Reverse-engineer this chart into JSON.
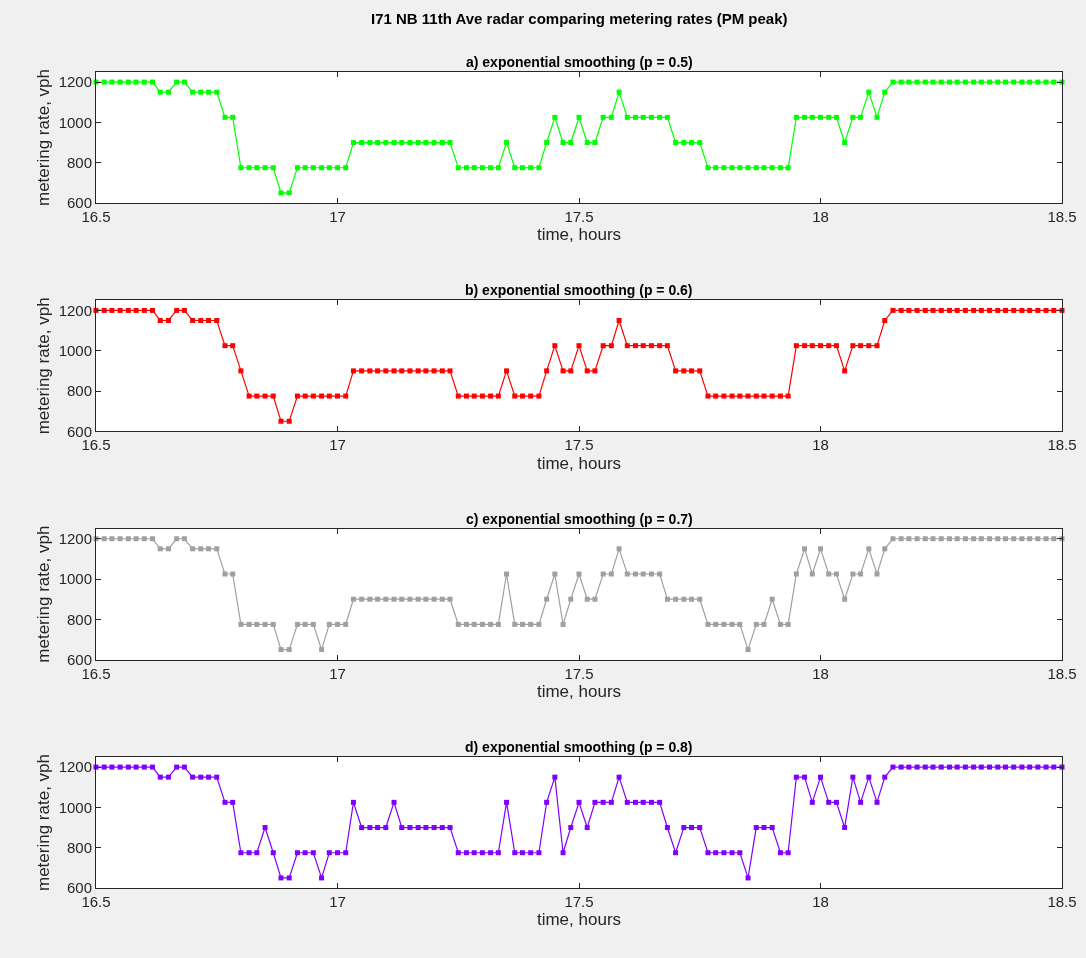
{
  "chart_data": [
    {
      "type": "line",
      "title": "I71 NB 11th Ave radar comparing metering rates (PM peak)",
      "subtitle": "a) exponential smoothing (p = 0.5)",
      "xlabel": "time, hours",
      "ylabel": "metering rate, vph",
      "color": "#00ff00",
      "marker": "square",
      "xlim": [
        16.5,
        18.5
      ],
      "ylim": [
        600,
        1250
      ],
      "xticks": [
        16.5,
        17,
        17.5,
        18,
        18.5
      ],
      "yticks": [
        600,
        800,
        1000,
        1200
      ],
      "x": [
        16.5,
        16.517,
        16.533,
        16.55,
        16.567,
        16.583,
        16.6,
        16.617,
        16.633,
        16.65,
        16.667,
        16.683,
        16.7,
        16.717,
        16.733,
        16.75,
        16.767,
        16.783,
        16.8,
        16.817,
        16.833,
        16.85,
        16.867,
        16.883,
        16.9,
        16.917,
        16.933,
        16.95,
        16.967,
        16.983,
        17.0,
        17.017,
        17.033,
        17.05,
        17.067,
        17.083,
        17.1,
        17.117,
        17.133,
        17.15,
        17.167,
        17.183,
        17.2,
        17.217,
        17.233,
        17.25,
        17.267,
        17.283,
        17.3,
        17.317,
        17.333,
        17.35,
        17.367,
        17.383,
        17.4,
        17.417,
        17.433,
        17.45,
        17.467,
        17.483,
        17.5,
        17.517,
        17.533,
        17.55,
        17.567,
        17.583,
        17.6,
        17.617,
        17.633,
        17.65,
        17.667,
        17.683,
        17.7,
        17.717,
        17.733,
        17.75,
        17.767,
        17.783,
        17.8,
        17.817,
        17.833,
        17.85,
        17.867,
        17.883,
        17.9,
        17.917,
        17.933,
        17.95,
        17.967,
        17.983,
        18.0,
        18.017,
        18.033,
        18.05,
        18.067,
        18.083,
        18.1,
        18.117,
        18.133,
        18.15,
        18.167,
        18.183,
        18.2,
        18.217,
        18.233,
        18.25,
        18.267,
        18.283,
        18.3,
        18.317,
        18.333,
        18.35,
        18.367,
        18.383,
        18.4,
        18.417,
        18.433,
        18.45,
        18.467,
        18.483,
        18.5
      ],
      "values": [
        1200,
        1200,
        1200,
        1200,
        1200,
        1200,
        1200,
        1200,
        1150,
        1150,
        1200,
        1200,
        1150,
        1150,
        1150,
        1150,
        1025,
        1025,
        775,
        775,
        775,
        775,
        775,
        650,
        650,
        775,
        775,
        775,
        775,
        775,
        775,
        775,
        900,
        900,
        900,
        900,
        900,
        900,
        900,
        900,
        900,
        900,
        900,
        900,
        900,
        775,
        775,
        775,
        775,
        775,
        775,
        900,
        775,
        775,
        775,
        775,
        900,
        1025,
        900,
        900,
        1025,
        900,
        900,
        1025,
        1025,
        1150,
        1025,
        1025,
        1025,
        1025,
        1025,
        1025,
        900,
        900,
        900,
        900,
        775,
        775,
        775,
        775,
        775,
        775,
        775,
        775,
        775,
        775,
        775,
        1025,
        1025,
        1025,
        1025,
        1025,
        1025,
        900,
        1025,
        1025,
        1150,
        1025,
        1150,
        1200,
        1200,
        1200,
        1200,
        1200,
        1200,
        1200,
        1200,
        1200,
        1200,
        1200,
        1200,
        1200,
        1200,
        1200,
        1200,
        1200,
        1200,
        1200,
        1200,
        1200,
        1200
      ]
    },
    {
      "type": "line",
      "subtitle": "b) exponential smoothing (p = 0.6)",
      "xlabel": "time, hours",
      "ylabel": "metering rate, vph",
      "color": "#ff0000",
      "marker": "square",
      "xlim": [
        16.5,
        18.5
      ],
      "ylim": [
        600,
        1250
      ],
      "xticks": [
        16.5,
        17,
        17.5,
        18,
        18.5
      ],
      "yticks": [
        600,
        800,
        1000,
        1200
      ],
      "x": [
        16.5,
        16.517,
        16.533,
        16.55,
        16.567,
        16.583,
        16.6,
        16.617,
        16.633,
        16.65,
        16.667,
        16.683,
        16.7,
        16.717,
        16.733,
        16.75,
        16.767,
        16.783,
        16.8,
        16.817,
        16.833,
        16.85,
        16.867,
        16.883,
        16.9,
        16.917,
        16.933,
        16.95,
        16.967,
        16.983,
        17.0,
        17.017,
        17.033,
        17.05,
        17.067,
        17.083,
        17.1,
        17.117,
        17.133,
        17.15,
        17.167,
        17.183,
        17.2,
        17.217,
        17.233,
        17.25,
        17.267,
        17.283,
        17.3,
        17.317,
        17.333,
        17.35,
        17.367,
        17.383,
        17.4,
        17.417,
        17.433,
        17.45,
        17.467,
        17.483,
        17.5,
        17.517,
        17.533,
        17.55,
        17.567,
        17.583,
        17.6,
        17.617,
        17.633,
        17.65,
        17.667,
        17.683,
        17.7,
        17.717,
        17.733,
        17.75,
        17.767,
        17.783,
        17.8,
        17.817,
        17.833,
        17.85,
        17.867,
        17.883,
        17.9,
        17.917,
        17.933,
        17.95,
        17.967,
        17.983,
        18.0,
        18.017,
        18.033,
        18.05,
        18.067,
        18.083,
        18.1,
        18.117,
        18.133,
        18.15,
        18.167,
        18.183,
        18.2,
        18.217,
        18.233,
        18.25,
        18.267,
        18.283,
        18.3,
        18.317,
        18.333,
        18.35,
        18.367,
        18.383,
        18.4,
        18.417,
        18.433,
        18.45,
        18.467,
        18.483,
        18.5
      ],
      "values": [
        1200,
        1200,
        1200,
        1200,
        1200,
        1200,
        1200,
        1200,
        1150,
        1150,
        1200,
        1200,
        1150,
        1150,
        1150,
        1150,
        1025,
        1025,
        900,
        775,
        775,
        775,
        775,
        650,
        650,
        775,
        775,
        775,
        775,
        775,
        775,
        775,
        900,
        900,
        900,
        900,
        900,
        900,
        900,
        900,
        900,
        900,
        900,
        900,
        900,
        775,
        775,
        775,
        775,
        775,
        775,
        900,
        775,
        775,
        775,
        775,
        900,
        1025,
        900,
        900,
        1025,
        900,
        900,
        1025,
        1025,
        1150,
        1025,
        1025,
        1025,
        1025,
        1025,
        1025,
        900,
        900,
        900,
        900,
        775,
        775,
        775,
        775,
        775,
        775,
        775,
        775,
        775,
        775,
        775,
        1025,
        1025,
        1025,
        1025,
        1025,
        1025,
        900,
        1025,
        1025,
        1025,
        1025,
        1150,
        1200,
        1200,
        1200,
        1200,
        1200,
        1200,
        1200,
        1200,
        1200,
        1200,
        1200,
        1200,
        1200,
        1200,
        1200,
        1200,
        1200,
        1200,
        1200,
        1200,
        1200,
        1200
      ]
    },
    {
      "type": "line",
      "subtitle": "c) exponential smoothing (p = 0.7)",
      "xlabel": "time, hours",
      "ylabel": "metering rate, vph",
      "color": "#a0a0a0",
      "marker": "square",
      "xlim": [
        16.5,
        18.5
      ],
      "ylim": [
        600,
        1250
      ],
      "xticks": [
        16.5,
        17,
        17.5,
        18,
        18.5
      ],
      "yticks": [
        600,
        800,
        1000,
        1200
      ],
      "x": [
        16.5,
        16.517,
        16.533,
        16.55,
        16.567,
        16.583,
        16.6,
        16.617,
        16.633,
        16.65,
        16.667,
        16.683,
        16.7,
        16.717,
        16.733,
        16.75,
        16.767,
        16.783,
        16.8,
        16.817,
        16.833,
        16.85,
        16.867,
        16.883,
        16.9,
        16.917,
        16.933,
        16.95,
        16.967,
        16.983,
        17.0,
        17.017,
        17.033,
        17.05,
        17.067,
        17.083,
        17.1,
        17.117,
        17.133,
        17.15,
        17.167,
        17.183,
        17.2,
        17.217,
        17.233,
        17.25,
        17.267,
        17.283,
        17.3,
        17.317,
        17.333,
        17.35,
        17.367,
        17.383,
        17.4,
        17.417,
        17.433,
        17.45,
        17.467,
        17.483,
        17.5,
        17.517,
        17.533,
        17.55,
        17.567,
        17.583,
        17.6,
        17.617,
        17.633,
        17.65,
        17.667,
        17.683,
        17.7,
        17.717,
        17.733,
        17.75,
        17.767,
        17.783,
        17.8,
        17.817,
        17.833,
        17.85,
        17.867,
        17.883,
        17.9,
        17.917,
        17.933,
        17.95,
        17.967,
        17.983,
        18.0,
        18.017,
        18.033,
        18.05,
        18.067,
        18.083,
        18.1,
        18.117,
        18.133,
        18.15,
        18.167,
        18.183,
        18.2,
        18.217,
        18.233,
        18.25,
        18.267,
        18.283,
        18.3,
        18.317,
        18.333,
        18.35,
        18.367,
        18.383,
        18.4,
        18.417,
        18.433,
        18.45,
        18.467,
        18.483,
        18.5
      ],
      "values": [
        1200,
        1200,
        1200,
        1200,
        1200,
        1200,
        1200,
        1200,
        1150,
        1150,
        1200,
        1200,
        1150,
        1150,
        1150,
        1150,
        1025,
        1025,
        775,
        775,
        775,
        775,
        775,
        650,
        650,
        775,
        775,
        775,
        650,
        775,
        775,
        775,
        900,
        900,
        900,
        900,
        900,
        900,
        900,
        900,
        900,
        900,
        900,
        900,
        900,
        775,
        775,
        775,
        775,
        775,
        775,
        1025,
        775,
        775,
        775,
        775,
        900,
        1025,
        775,
        900,
        1025,
        900,
        900,
        1025,
        1025,
        1150,
        1025,
        1025,
        1025,
        1025,
        1025,
        900,
        900,
        900,
        900,
        900,
        775,
        775,
        775,
        775,
        775,
        650,
        775,
        775,
        900,
        775,
        775,
        1025,
        1150,
        1025,
        1150,
        1025,
        1025,
        900,
        1025,
        1025,
        1150,
        1025,
        1150,
        1200,
        1200,
        1200,
        1200,
        1200,
        1200,
        1200,
        1200,
        1200,
        1200,
        1200,
        1200,
        1200,
        1200,
        1200,
        1200,
        1200,
        1200,
        1200,
        1200,
        1200,
        1200
      ]
    },
    {
      "type": "line",
      "subtitle": "d) exponential smoothing (p = 0.8)",
      "xlabel": "time, hours",
      "ylabel": "metering rate, vph",
      "color": "#8000ff",
      "marker": "square",
      "xlim": [
        16.5,
        18.5
      ],
      "ylim": [
        600,
        1250
      ],
      "xticks": [
        16.5,
        17,
        17.5,
        18,
        18.5
      ],
      "yticks": [
        600,
        800,
        1000,
        1200
      ],
      "x": [
        16.5,
        16.517,
        16.533,
        16.55,
        16.567,
        16.583,
        16.6,
        16.617,
        16.633,
        16.65,
        16.667,
        16.683,
        16.7,
        16.717,
        16.733,
        16.75,
        16.767,
        16.783,
        16.8,
        16.817,
        16.833,
        16.85,
        16.867,
        16.883,
        16.9,
        16.917,
        16.933,
        16.95,
        16.967,
        16.983,
        17.0,
        17.017,
        17.033,
        17.05,
        17.067,
        17.083,
        17.1,
        17.117,
        17.133,
        17.15,
        17.167,
        17.183,
        17.2,
        17.217,
        17.233,
        17.25,
        17.267,
        17.283,
        17.3,
        17.317,
        17.333,
        17.35,
        17.367,
        17.383,
        17.4,
        17.417,
        17.433,
        17.45,
        17.467,
        17.483,
        17.5,
        17.517,
        17.533,
        17.55,
        17.567,
        17.583,
        17.6,
        17.617,
        17.633,
        17.65,
        17.667,
        17.683,
        17.7,
        17.717,
        17.733,
        17.75,
        17.767,
        17.783,
        17.8,
        17.817,
        17.833,
        17.85,
        17.867,
        17.883,
        17.9,
        17.917,
        17.933,
        17.95,
        17.967,
        17.983,
        18.0,
        18.017,
        18.033,
        18.05,
        18.067,
        18.083,
        18.1,
        18.117,
        18.133,
        18.15,
        18.167,
        18.183,
        18.2,
        18.217,
        18.233,
        18.25,
        18.267,
        18.283,
        18.3,
        18.317,
        18.333,
        18.35,
        18.367,
        18.383,
        18.4,
        18.417,
        18.433,
        18.45,
        18.467,
        18.483,
        18.5
      ],
      "values": [
        1200,
        1200,
        1200,
        1200,
        1200,
        1200,
        1200,
        1200,
        1150,
        1150,
        1200,
        1200,
        1150,
        1150,
        1150,
        1150,
        1025,
        1025,
        775,
        775,
        775,
        900,
        775,
        650,
        650,
        775,
        775,
        775,
        650,
        775,
        775,
        775,
        1025,
        900,
        900,
        900,
        900,
        1025,
        900,
        900,
        900,
        900,
        900,
        900,
        900,
        775,
        775,
        775,
        775,
        775,
        775,
        1025,
        775,
        775,
        775,
        775,
        1025,
        1150,
        775,
        900,
        1025,
        900,
        1025,
        1025,
        1025,
        1150,
        1025,
        1025,
        1025,
        1025,
        1025,
        900,
        775,
        900,
        900,
        900,
        775,
        775,
        775,
        775,
        775,
        650,
        900,
        900,
        900,
        775,
        775,
        1150,
        1150,
        1025,
        1150,
        1025,
        1025,
        900,
        1150,
        1025,
        1150,
        1025,
        1150,
        1200,
        1200,
        1200,
        1200,
        1200,
        1200,
        1200,
        1200,
        1200,
        1200,
        1200,
        1200,
        1200,
        1200,
        1200,
        1200,
        1200,
        1200,
        1200,
        1200,
        1200,
        1200
      ]
    }
  ]
}
